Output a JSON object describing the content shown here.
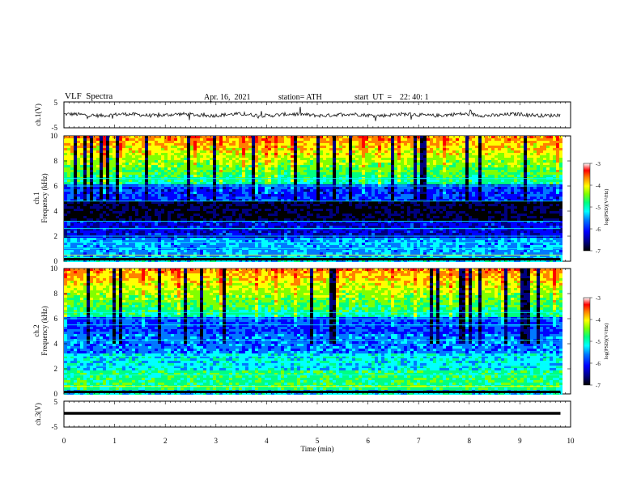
{
  "header": {
    "title": "VLF  Spectra",
    "date": "Apr. 16,  2021",
    "station": "station= ATH",
    "start": "start  UT  =    22: 40: 1"
  },
  "colors": {
    "wave_trace": "#111111",
    "axis": "#000000",
    "colormap": [
      "#000000",
      "#000080",
      "#0000ff",
      "#0078ff",
      "#00ffff",
      "#00ff80",
      "#80ff00",
      "#ffff00",
      "#ff8000",
      "#ff0000",
      "#ffffff"
    ]
  },
  "chart_data": [
    {
      "type": "line",
      "panel": "ch1-waveform",
      "ylabel": "ch.1(V)",
      "ylim": [
        -5,
        5
      ],
      "y_ticks": [
        "5",
        "-5"
      ],
      "x_range_min": [
        0,
        9.8
      ],
      "description_level": "noisy waveform near 0 V with spikes"
    },
    {
      "type": "heatmap",
      "panel": "ch1-spectrogram",
      "ylabel": "ch.1\nFrequency (kHz)",
      "ylim": [
        0,
        10
      ],
      "y_ticks": [
        "0",
        "2",
        "4",
        "6",
        "8",
        "10"
      ],
      "colorbar": {
        "label": "log(PSD)(V²/Hz)",
        "range": [
          -7,
          -3
        ],
        "ticks": [
          "-3",
          "-4",
          "-5",
          "-6",
          "-7"
        ]
      }
    },
    {
      "type": "heatmap",
      "panel": "ch2-spectrogram",
      "ylabel": "ch.2\nFrequency (kHz)",
      "ylim": [
        0,
        10
      ],
      "y_ticks": [
        "0",
        "2",
        "4",
        "6",
        "8",
        "10"
      ],
      "colorbar": {
        "label": "log(PSD)(V²/Hz)",
        "range": [
          -7,
          -3
        ],
        "ticks": [
          "-3",
          "-4",
          "-5",
          "-6",
          "-7"
        ]
      }
    },
    {
      "type": "line",
      "panel": "ch3-waveform",
      "ylabel": "ch.3(V)",
      "ylim": [
        -5,
        5
      ],
      "y_ticks": [
        "5",
        "-5"
      ],
      "level": -1.2,
      "x_range_min": [
        0,
        9.8
      ]
    }
  ],
  "x_axis": {
    "label": "Time  (min)",
    "range": [
      0,
      10
    ],
    "ticks": [
      "0",
      "1",
      "2",
      "3",
      "4",
      "5",
      "6",
      "7",
      "8",
      "9",
      "10"
    ]
  }
}
